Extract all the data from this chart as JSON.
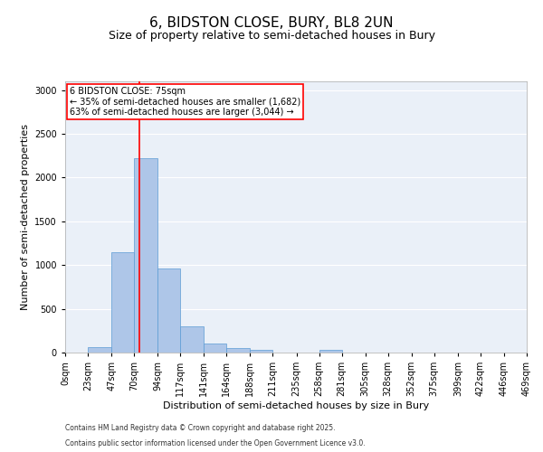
{
  "title": "6, BIDSTON CLOSE, BURY, BL8 2UN",
  "subtitle": "Size of property relative to semi-detached houses in Bury",
  "xlabel": "Distribution of semi-detached houses by size in Bury",
  "ylabel": "Number of semi-detached properties",
  "footnote1": "Contains HM Land Registry data © Crown copyright and database right 2025.",
  "footnote2": "Contains public sector information licensed under the Open Government Licence v3.0.",
  "annotation_title": "6 BIDSTON CLOSE: 75sqm",
  "annotation_line1": "← 35% of semi-detached houses are smaller (1,682)",
  "annotation_line2": "63% of semi-detached houses are larger (3,044) →",
  "bar_edges": [
    0,
    23,
    47,
    70,
    94,
    117,
    141,
    164,
    188,
    211,
    235,
    258,
    281,
    305,
    328,
    352,
    375,
    399,
    422,
    446,
    469
  ],
  "bar_heights": [
    0,
    60,
    1150,
    2220,
    960,
    300,
    100,
    55,
    30,
    0,
    0,
    30,
    0,
    0,
    0,
    0,
    0,
    0,
    0,
    0
  ],
  "bar_color": "#aec6e8",
  "bar_edge_color": "#5b9bd5",
  "vline_x": 75,
  "vline_color": "red",
  "ylim": [
    0,
    3100
  ],
  "yticks": [
    0,
    500,
    1000,
    1500,
    2000,
    2500,
    3000
  ],
  "background_color": "#eaf0f8",
  "grid_color": "white",
  "title_fontsize": 11,
  "subtitle_fontsize": 9,
  "tick_fontsize": 7,
  "ylabel_fontsize": 8,
  "xlabel_fontsize": 8,
  "footnote_fontsize": 5.5,
  "annotation_fontsize": 7
}
